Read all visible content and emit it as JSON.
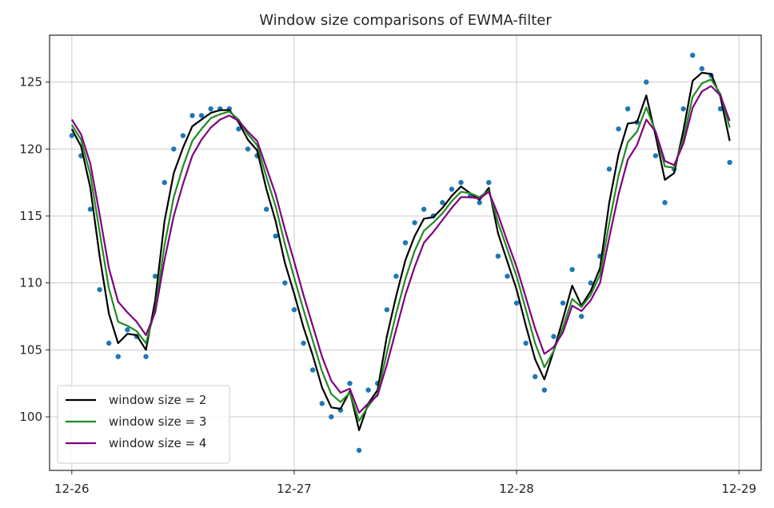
{
  "chart_data": {
    "type": "line",
    "title": "Window size comparisons of EWMA-filter",
    "xlabel": "",
    "ylabel": "",
    "x_ticks": [
      "12-26",
      "12-27",
      "12-28",
      "12-29"
    ],
    "y_ticks": [
      100,
      105,
      110,
      115,
      120,
      125
    ],
    "xlim": [
      -0.1,
      3.1
    ],
    "ylim": [
      96.0,
      128.5
    ],
    "grid": true,
    "legend_position": "bottom-left",
    "x": [
      0.0,
      0.0417,
      0.0833,
      0.125,
      0.1667,
      0.2083,
      0.25,
      0.2917,
      0.3333,
      0.375,
      0.4167,
      0.4583,
      0.5,
      0.5417,
      0.5833,
      0.625,
      0.6667,
      0.7083,
      0.75,
      0.7917,
      0.8333,
      0.875,
      0.9167,
      0.9583,
      1.0,
      1.0417,
      1.0833,
      1.125,
      1.1667,
      1.2083,
      1.25,
      1.2917,
      1.3333,
      1.375,
      1.4167,
      1.4583,
      1.5,
      1.5417,
      1.5833,
      1.625,
      1.6667,
      1.7083,
      1.75,
      1.7917,
      1.8333,
      1.875,
      1.9167,
      1.9583,
      2.0,
      2.0417,
      2.0833,
      2.125,
      2.1667,
      2.2083,
      2.25,
      2.2917,
      2.3333,
      2.375,
      2.4167,
      2.4583,
      2.5,
      2.5417,
      2.5833,
      2.625,
      2.6667,
      2.7083,
      2.75,
      2.7917,
      2.8333,
      2.875,
      2.9167,
      2.9583
    ],
    "raw": {
      "name": "",
      "color": "#1f77b4",
      "values": [
        121.0,
        119.5,
        115.5,
        109.5,
        105.5,
        104.5,
        106.5,
        106.0,
        104.5,
        110.5,
        117.5,
        120.0,
        121.0,
        122.5,
        122.5,
        123.0,
        123.0,
        123.0,
        121.5,
        120.0,
        119.5,
        115.5,
        113.5,
        110.0,
        108.0,
        105.5,
        103.5,
        101.0,
        100.0,
        100.5,
        102.5,
        97.5,
        102.0,
        102.5,
        108.0,
        110.5,
        113.0,
        114.5,
        115.5,
        115.0,
        116.0,
        117.0,
        117.5,
        116.5,
        116.0,
        117.5,
        112.0,
        110.5,
        108.5,
        105.5,
        103.0,
        102.0,
        106.0,
        108.5,
        111.0,
        107.5,
        110.0,
        112.0,
        118.5,
        121.5,
        123.0,
        122.0,
        125.0,
        119.5,
        116.0,
        118.5,
        123.0,
        127.0,
        126.0,
        125.5,
        123.0,
        119.0
      ]
    },
    "series": [
      {
        "name": "window size = 2",
        "color": "#000000",
        "values": [
          121.5,
          120.2,
          117.1,
          112.0,
          107.7,
          105.5,
          106.2,
          106.1,
          105.0,
          108.7,
          114.6,
          118.2,
          120.1,
          121.7,
          122.2,
          122.7,
          122.9,
          122.9,
          122.0,
          120.7,
          119.9,
          117.0,
          114.6,
          111.5,
          109.2,
          106.7,
          104.6,
          102.2,
          100.7,
          100.6,
          101.9,
          99.0,
          101.0,
          102.0,
          106.0,
          109.0,
          111.7,
          113.5,
          114.8,
          114.9,
          115.6,
          116.5,
          117.2,
          116.7,
          116.2,
          117.1,
          113.7,
          111.6,
          109.5,
          106.8,
          104.3,
          102.8,
          104.9,
          107.3,
          109.8,
          108.3,
          109.4,
          111.1,
          116.0,
          119.6,
          121.9,
          122.0,
          124.0,
          121.0,
          117.7,
          118.2,
          121.4,
          125.1,
          125.7,
          125.6,
          123.9,
          120.6
        ]
      },
      {
        "name": "window size = 3",
        "color": "#228b22",
        "values": [
          121.8,
          120.7,
          118.1,
          113.8,
          109.6,
          107.1,
          106.8,
          106.4,
          105.5,
          108.0,
          112.8,
          116.4,
          118.7,
          120.6,
          121.5,
          122.3,
          122.6,
          122.8,
          122.2,
          121.1,
          120.3,
          117.9,
          115.7,
          112.9,
          110.4,
          108.0,
          105.7,
          103.4,
          101.7,
          101.1,
          101.8,
          99.7,
          100.8,
          101.7,
          104.8,
          107.7,
          110.3,
          112.4,
          113.9,
          114.5,
          115.2,
          116.1,
          116.8,
          116.7,
          116.4,
          116.9,
          114.5,
          112.5,
          110.5,
          108.0,
          105.5,
          103.7,
          104.9,
          106.7,
          108.8,
          108.2,
          109.1,
          110.6,
          114.5,
          118.0,
          120.5,
          121.3,
          123.1,
          121.3,
          118.7,
          118.6,
          120.8,
          123.9,
          124.9,
          125.2,
          124.1,
          121.6
        ]
      },
      {
        "name": "window size = 4",
        "color": "#800080",
        "values": [
          122.2,
          121.1,
          118.9,
          115.1,
          111.1,
          108.6,
          107.8,
          107.1,
          106.1,
          107.8,
          111.7,
          115.0,
          117.4,
          119.5,
          120.7,
          121.6,
          122.2,
          122.5,
          122.1,
          121.3,
          120.6,
          118.6,
          116.6,
          114.0,
          111.6,
          109.1,
          106.8,
          104.5,
          102.7,
          101.8,
          102.1,
          100.3,
          101.0,
          101.6,
          103.9,
          106.5,
          109.1,
          111.2,
          113.0,
          113.8,
          114.7,
          115.6,
          116.4,
          116.4,
          116.3,
          116.8,
          115.1,
          113.1,
          111.2,
          108.9,
          106.6,
          104.7,
          105.2,
          106.3,
          108.3,
          107.9,
          108.7,
          110.0,
          113.4,
          116.6,
          119.2,
          120.3,
          122.2,
          121.3,
          119.1,
          118.8,
          120.4,
          123.1,
          124.3,
          124.7,
          124.0,
          122.1
        ]
      }
    ]
  }
}
